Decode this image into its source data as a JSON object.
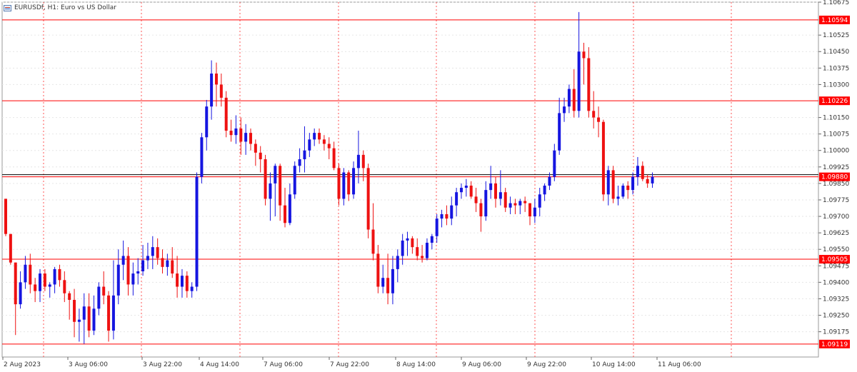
{
  "header": {
    "icon": "grid-icon",
    "title": "EURUSDf, H1:  Euro vs US Dollar"
  },
  "colors": {
    "bull": "#1515e0",
    "bear": "#ee1111",
    "hline": "#ff0000",
    "label_bg": "#ff0000",
    "label_text": "#ffffff",
    "bid_line": "#000000",
    "grid": "#e6e6e6",
    "period_sep": "#ff5555"
  },
  "chart_data": {
    "type": "candlestick",
    "symbol": "EURUSDf",
    "timeframe": "H1",
    "ylim": [
      1.0906,
      1.10675
    ],
    "y_ticks": [
      "1.10675",
      "1.10594",
      "1.10525",
      "1.10450",
      "1.10375",
      "1.10300",
      "1.10226",
      "1.10150",
      "1.10075",
      "1.10000",
      "1.09925",
      "1.09880",
      "1.09850",
      "1.09775",
      "1.09700",
      "1.09625",
      "1.09550",
      "1.09505",
      "1.09475",
      "1.09400",
      "1.09325",
      "1.09250",
      "1.09175",
      "1.09119"
    ],
    "x_ticks": [
      "2 Aug 2023",
      "3 Aug 06:00",
      "3 Aug 22:00",
      "4 Aug 14:00",
      "7 Aug 06:00",
      "7 Aug 22:00",
      "8 Aug 14:00",
      "9 Aug 06:00",
      "9 Aug 22:00",
      "10 Aug 14:00",
      "11 Aug 06:00"
    ],
    "period_separators": [
      "3 Aug",
      "4 Aug",
      "7 Aug",
      "8 Aug",
      "9 Aug",
      "10 Aug",
      "11 Aug"
    ],
    "horizontal_lines": [
      "1.10594",
      "1.10226",
      "1.09880",
      "1.09505",
      "1.09119"
    ],
    "current_price": "1.09880",
    "grid": true,
    "candles": [
      [
        1.0978,
        1.0978,
        1.0961,
        1.0962
      ],
      [
        1.0962,
        1.0962,
        1.0948,
        1.0949
      ],
      [
        1.0949,
        1.0949,
        1.0916,
        1.093
      ],
      [
        1.093,
        1.0945,
        1.0928,
        1.094
      ],
      [
        1.094,
        1.0952,
        1.0937,
        1.0948
      ],
      [
        1.0948,
        1.0953,
        1.0935,
        1.0939
      ],
      [
        1.0939,
        1.0942,
        1.0931,
        1.0936
      ],
      [
        1.0936,
        1.0946,
        1.0931,
        1.0944
      ],
      [
        1.0944,
        1.0946,
        1.0936,
        1.0938
      ],
      [
        1.0938,
        1.094,
        1.0933,
        1.0939
      ],
      [
        1.0939,
        1.0947,
        1.0935,
        1.0946
      ],
      [
        1.0946,
        1.0948,
        1.0938,
        1.0941
      ],
      [
        1.0941,
        1.0945,
        1.0931,
        1.0935
      ],
      [
        1.0935,
        1.0936,
        1.0923,
        1.0932
      ],
      [
        1.0932,
        1.0937,
        1.0915,
        1.0922
      ],
      [
        1.0922,
        1.0928,
        1.0913,
        1.0923
      ],
      [
        1.0923,
        1.0935,
        1.0912,
        1.0929
      ],
      [
        1.0929,
        1.0935,
        1.0915,
        1.0918
      ],
      [
        1.0918,
        1.0934,
        1.0916,
        1.0928
      ],
      [
        1.0928,
        1.094,
        1.0925,
        1.0938
      ],
      [
        1.0938,
        1.0945,
        1.093,
        1.0934
      ],
      [
        1.0934,
        1.0936,
        1.0913,
        1.0918
      ],
      [
        1.0918,
        1.095,
        1.0914,
        1.0934
      ],
      [
        1.0934,
        1.0955,
        1.093,
        1.0948
      ],
      [
        1.0948,
        1.0959,
        1.0941,
        1.0952
      ],
      [
        1.0952,
        1.0956,
        1.0934,
        1.0939
      ],
      [
        1.0939,
        1.0949,
        1.0934,
        1.0944
      ],
      [
        1.0944,
        1.0951,
        1.0939,
        1.0945
      ],
      [
        1.0945,
        1.0957,
        1.0943,
        1.095
      ],
      [
        1.095,
        1.0958,
        1.0946,
        1.0952
      ],
      [
        1.0952,
        1.0961,
        1.0946,
        1.0956
      ],
      [
        1.0956,
        1.096,
        1.0948,
        1.0951
      ],
      [
        1.0951,
        1.0955,
        1.0944,
        1.0947
      ],
      [
        1.0947,
        1.0953,
        1.0943,
        1.095
      ],
      [
        1.095,
        1.0956,
        1.0942,
        1.0944
      ],
      [
        1.0944,
        1.0952,
        1.0933,
        1.0938
      ],
      [
        1.0938,
        1.0946,
        1.0933,
        1.0943
      ],
      [
        1.0943,
        1.0945,
        1.0933,
        1.0936
      ],
      [
        1.0936,
        1.094,
        1.0933,
        1.0938
      ],
      [
        1.0938,
        1.099,
        1.0936,
        1.0988
      ],
      [
        1.0988,
        1.1008,
        1.0985,
        1.1006
      ],
      [
        1.1006,
        1.1023,
        1.1,
        1.102
      ],
      [
        1.102,
        1.1041,
        1.1014,
        1.1035
      ],
      [
        1.1035,
        1.104,
        1.102,
        1.103
      ],
      [
        1.103,
        1.1035,
        1.102,
        1.1024
      ],
      [
        1.1024,
        1.1027,
        1.1006,
        1.1009
      ],
      [
        1.1009,
        1.1014,
        1.1004,
        1.1007
      ],
      [
        1.1007,
        1.1016,
        1.1003,
        1.101
      ],
      [
        1.101,
        1.1015,
        1.0998,
        1.1004
      ],
      [
        1.1004,
        1.1012,
        1.0998,
        1.1008
      ],
      [
        1.1008,
        1.101,
        1.1,
        1.1003
      ],
      [
        1.1003,
        1.1005,
        1.0993,
        1.0999
      ],
      [
        1.0999,
        1.1002,
        1.099,
        1.0996
      ],
      [
        1.0996,
        1.0998,
        1.0975,
        1.0978
      ],
      [
        1.0978,
        1.099,
        1.0968,
        1.0985
      ],
      [
        1.0985,
        1.0994,
        1.097,
        1.0993
      ],
      [
        1.0993,
        1.0994,
        1.0968,
        1.0975
      ],
      [
        1.0975,
        1.0983,
        1.0965,
        1.0967
      ],
      [
        1.0967,
        1.0985,
        1.0966,
        1.098
      ],
      [
        1.098,
        1.0995,
        1.0978,
        1.0993
      ],
      [
        1.0993,
        1.1001,
        1.099,
        1.0996
      ],
      [
        1.0996,
        1.1011,
        1.099,
        1.1
      ],
      [
        1.1,
        1.1008,
        1.0997,
        1.1005
      ],
      [
        1.1005,
        1.101,
        1.1002,
        1.1008
      ],
      [
        1.1008,
        1.101,
        1.1003,
        1.1005
      ],
      [
        1.1005,
        1.1007,
        1.1,
        1.1003
      ],
      [
        1.1003,
        1.1006,
        1.0996,
        1.1001
      ],
      [
        1.1001,
        1.1004,
        1.0991,
        1.0992
      ],
      [
        1.0992,
        1.0994,
        1.0975,
        1.0978
      ],
      [
        1.0978,
        1.0992,
        1.0975,
        1.099
      ],
      [
        1.099,
        1.0991,
        1.0977,
        1.098
      ],
      [
        1.098,
        1.0995,
        1.0978,
        1.0992
      ],
      [
        1.0992,
        1.1009,
        1.0985,
        1.0998
      ],
      [
        1.0998,
        1.1,
        1.0986,
        1.0992
      ],
      [
        1.0992,
        1.0994,
        1.096,
        1.0964
      ],
      [
        1.0964,
        1.0976,
        1.095,
        1.0953
      ],
      [
        1.0953,
        1.0957,
        1.0935,
        1.0938
      ],
      [
        1.0938,
        1.0948,
        1.0935,
        1.0942
      ],
      [
        1.0942,
        1.0953,
        1.093,
        1.0935
      ],
      [
        1.0935,
        1.0952,
        1.093,
        1.0946
      ],
      [
        1.0946,
        1.0955,
        1.094,
        1.0952
      ],
      [
        1.0952,
        1.0962,
        1.0948,
        1.0959
      ],
      [
        1.0959,
        1.0963,
        1.0952,
        1.096
      ],
      [
        1.096,
        1.0961,
        1.0953,
        1.0956
      ],
      [
        1.0956,
        1.096,
        1.095,
        1.0952
      ],
      [
        1.0952,
        1.0957,
        1.0949,
        1.0951
      ],
      [
        1.0951,
        1.096,
        1.095,
        1.0958
      ],
      [
        1.0958,
        1.0962,
        1.0955,
        1.0961
      ],
      [
        1.0961,
        1.0971,
        1.0958,
        1.0969
      ],
      [
        1.0969,
        1.0973,
        1.0965,
        1.0971
      ],
      [
        1.0971,
        1.0975,
        1.0966,
        1.0969
      ],
      [
        1.0969,
        1.0979,
        1.0966,
        1.0975
      ],
      [
        1.0975,
        1.0983,
        1.097,
        1.0981
      ],
      [
        1.0981,
        1.0985,
        1.0978,
        1.0983
      ],
      [
        1.0983,
        1.0987,
        1.0979,
        1.0984
      ],
      [
        1.0984,
        1.0986,
        1.0978,
        1.0979
      ],
      [
        1.0979,
        1.0983,
        1.0972,
        1.0976
      ],
      [
        1.0976,
        1.0978,
        1.0963,
        1.097
      ],
      [
        1.097,
        1.0986,
        1.0968,
        1.0982
      ],
      [
        1.0982,
        1.0993,
        1.0978,
        1.0985
      ],
      [
        1.0985,
        1.0988,
        1.0974,
        1.0978
      ],
      [
        1.0978,
        1.0991,
        1.0975,
        1.0981
      ],
      [
        1.0981,
        1.0983,
        1.0972,
        1.0974
      ],
      [
        1.0974,
        1.0979,
        1.0971,
        1.0976
      ],
      [
        1.0976,
        1.0978,
        1.0971,
        1.0975
      ],
      [
        1.0975,
        1.0978,
        1.0971,
        1.0977
      ],
      [
        1.0977,
        1.0979,
        1.0972,
        1.0976
      ],
      [
        1.0976,
        1.0976,
        1.0966,
        1.097
      ],
      [
        1.097,
        1.0978,
        1.0967,
        1.0974
      ],
      [
        1.0974,
        1.0983,
        1.097,
        1.098
      ],
      [
        1.098,
        1.0985,
        1.0977,
        1.0984
      ],
      [
        1.0984,
        1.099,
        1.0982,
        1.0988
      ],
      [
        1.0988,
        1.1003,
        1.0986,
        1.1
      ],
      [
        1.1,
        1.1024,
        1.0998,
        1.1017
      ],
      [
        1.1017,
        1.1024,
        1.1013,
        1.102
      ],
      [
        1.102,
        1.103,
        1.1017,
        1.1028
      ],
      [
        1.1028,
        1.1037,
        1.1015,
        1.1018
      ],
      [
        1.1018,
        1.1063,
        1.1015,
        1.1045
      ],
      [
        1.1045,
        1.1049,
        1.103,
        1.1042
      ],
      [
        1.1042,
        1.1047,
        1.1015,
        1.1018
      ],
      [
        1.1018,
        1.1027,
        1.101,
        1.1015
      ],
      [
        1.1015,
        1.102,
        1.1006,
        1.1013
      ],
      [
        1.1013,
        1.1014,
        1.0977,
        1.098
      ],
      [
        1.098,
        1.0993,
        1.0975,
        1.0991
      ],
      [
        1.0991,
        1.0993,
        1.0976,
        1.0978
      ],
      [
        1.0978,
        1.0984,
        1.0975,
        1.0979
      ],
      [
        1.0979,
        1.0985,
        1.0978,
        1.0984
      ],
      [
        1.0984,
        1.0986,
        1.0978,
        1.0982
      ],
      [
        1.0982,
        1.099,
        1.098,
        1.0988
      ],
      [
        1.0988,
        1.0997,
        1.0984,
        1.0993
      ],
      [
        1.0993,
        1.0995,
        1.0986,
        1.0987
      ],
      [
        1.0987,
        1.0989,
        1.0983,
        1.0985
      ],
      [
        1.0985,
        1.099,
        1.0983,
        1.0988
      ]
    ]
  }
}
